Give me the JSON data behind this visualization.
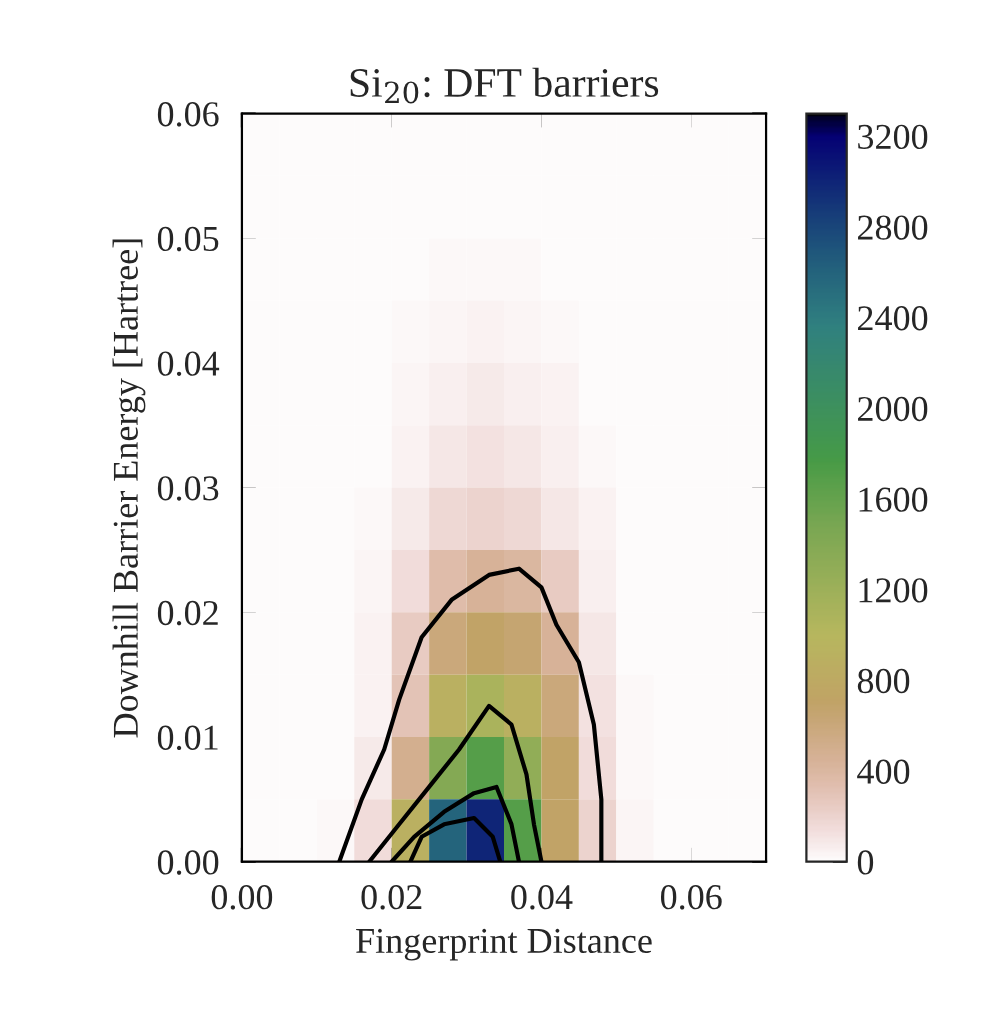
{
  "chart_data": {
    "type": "heatmap",
    "title": "Si$_{20}$: DFT barriers",
    "xlabel": "Fingerprint Distance",
    "ylabel": "Downhill Barrier Energy [Hartree]",
    "x": [
      0.0025,
      0.0075,
      0.0125,
      0.0175,
      0.0225,
      0.0275,
      0.0325,
      0.0375,
      0.0425,
      0.0475,
      0.0525,
      0.0575,
      0.0625,
      0.0675
    ],
    "y": [
      0.0575,
      0.0525,
      0.0475,
      0.0425,
      0.0375,
      0.0325,
      0.0275,
      0.0225,
      0.0175,
      0.0125,
      0.0075,
      0.0025
    ],
    "cells": [
      [
        0,
        0,
        0,
        0,
        0,
        0,
        0,
        0,
        0,
        0,
        0,
        0,
        0,
        0
      ],
      [
        0,
        0,
        0,
        0,
        0,
        5,
        10,
        5,
        0,
        0,
        0,
        0,
        0,
        0
      ],
      [
        0,
        0,
        0,
        0,
        5,
        15,
        20,
        15,
        10,
        0,
        0,
        0,
        0,
        0
      ],
      [
        0,
        0,
        0,
        0,
        15,
        30,
        40,
        30,
        20,
        5,
        0,
        0,
        0,
        0
      ],
      [
        0,
        0,
        0,
        5,
        30,
        60,
        80,
        60,
        40,
        10,
        0,
        0,
        0,
        0
      ],
      [
        0,
        0,
        0,
        10,
        50,
        100,
        120,
        100,
        60,
        20,
        0,
        0,
        0,
        0
      ],
      [
        0,
        0,
        0,
        20,
        80,
        180,
        200,
        180,
        100,
        40,
        5,
        0,
        0,
        0
      ],
      [
        0,
        0,
        0,
        30,
        150,
        350,
        450,
        400,
        250,
        60,
        10,
        0,
        0,
        0
      ],
      [
        0,
        0,
        5,
        40,
        250,
        600,
        700,
        650,
        450,
        100,
        10,
        0,
        0,
        0
      ],
      [
        0,
        0,
        5,
        50,
        300,
        900,
        1100,
        900,
        600,
        120,
        15,
        0,
        0,
        0
      ],
      [
        0,
        0,
        10,
        80,
        500,
        1400,
        1700,
        1300,
        700,
        150,
        20,
        0,
        0,
        0
      ],
      [
        0,
        0,
        20,
        150,
        900,
        2600,
        3000,
        1700,
        700,
        200,
        30,
        0,
        0,
        0
      ]
    ],
    "xlim": [
      0,
      0.07
    ],
    "ylim": [
      0,
      0.06
    ],
    "xticks": [
      {
        "value": 0,
        "label": "0.00"
      },
      {
        "value": 0.02,
        "label": "0.02"
      },
      {
        "value": 0.04,
        "label": "0.04"
      },
      {
        "value": 0.06,
        "label": "0.06"
      }
    ],
    "yticks": [
      {
        "value": 0,
        "label": "0.00"
      },
      {
        "value": 0.01,
        "label": "0.01"
      },
      {
        "value": 0.02,
        "label": "0.02"
      },
      {
        "value": 0.03,
        "label": "0.03"
      },
      {
        "value": 0.04,
        "label": "0.04"
      },
      {
        "value": 0.05,
        "label": "0.05"
      },
      {
        "value": 0.06,
        "label": "0.06"
      }
    ],
    "series": [
      {
        "type": "line",
        "color": "#000000",
        "x": [
          0.013,
          0.016,
          0.019,
          0.021,
          0.024,
          0.028,
          0.033,
          0.037,
          0.04,
          0.042,
          0.045,
          0.047,
          0.048,
          0.048
        ],
        "values": [
          0,
          0.005,
          0.009,
          0.013,
          0.018,
          0.021,
          0.023,
          0.0235,
          0.022,
          0.019,
          0.016,
          0.011,
          0.005,
          0
        ]
      },
      {
        "type": "line",
        "color": "#000000",
        "x": [
          0.017,
          0.021,
          0.025,
          0.029,
          0.033,
          0.036,
          0.038,
          0.039,
          0.04
        ],
        "values": [
          0,
          0.003,
          0.006,
          0.009,
          0.0125,
          0.011,
          0.007,
          0.003,
          0
        ]
      },
      {
        "type": "line",
        "color": "#000000",
        "x": [
          0.02,
          0.023,
          0.027,
          0.031,
          0.034,
          0.036,
          0.037
        ],
        "values": [
          0,
          0.002,
          0.004,
          0.0055,
          0.006,
          0.003,
          0
        ]
      },
      {
        "type": "line",
        "color": "#000000",
        "x": [
          0.0225,
          0.024,
          0.027,
          0.031,
          0.0335,
          0.0345
        ],
        "values": [
          0,
          0.002,
          0.003,
          0.0035,
          0.002,
          0
        ]
      }
    ],
    "clim": [
      0,
      3300
    ],
    "cticks": [
      0,
      400,
      800,
      1200,
      1600,
      2000,
      2400,
      2800,
      3200
    ]
  }
}
